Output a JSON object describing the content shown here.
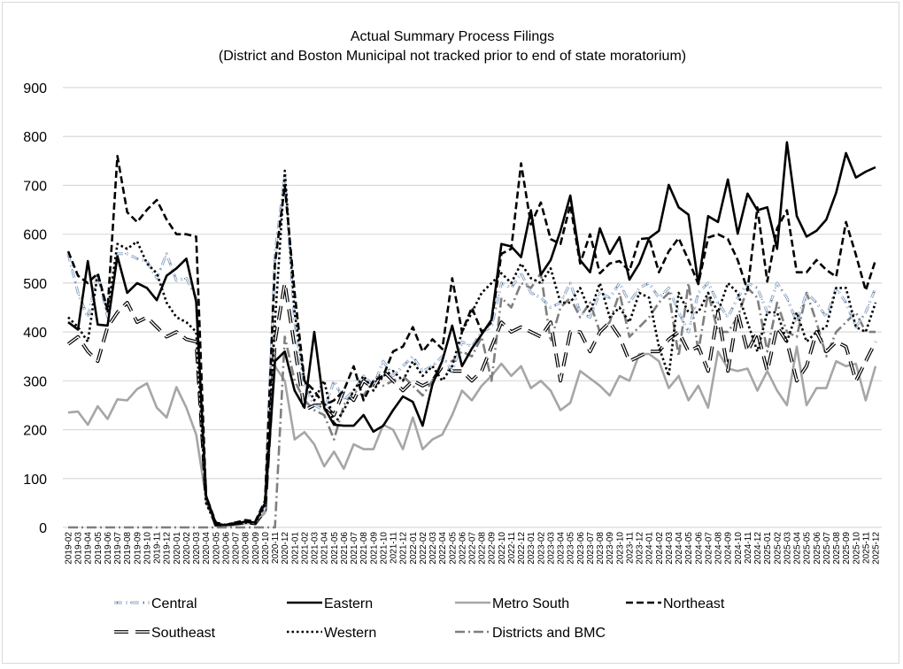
{
  "chart_data": {
    "type": "line",
    "title": "Actual Summary Process Filings",
    "subtitle": "(District and Boston Municipal not tracked prior to end of state moratorium)",
    "xlabel": "",
    "ylabel": "",
    "ylim": [
      0,
      900
    ],
    "yticks": [
      0,
      100,
      200,
      300,
      400,
      500,
      600,
      700,
      800,
      900
    ],
    "grid": true,
    "legend_position": "bottom",
    "categories": [
      "2019-02",
      "2019-03",
      "2019-04",
      "2019-05",
      "2019-06",
      "2019-07",
      "2019-08",
      "2019-09",
      "2019-10",
      "2019-11",
      "2019-12",
      "2020-01",
      "2020-02",
      "2020-03",
      "2020-04",
      "2020-05",
      "2020-06",
      "2020-07",
      "2020-08",
      "2020-09",
      "2020-10",
      "2020-11",
      "2020-12",
      "2021-01",
      "2021-02",
      "2021-03",
      "2021-04",
      "2021-05",
      "2021-06",
      "2021-07",
      "2021-08",
      "2021-09",
      "2021-10",
      "2021-11",
      "2021-12",
      "2022-01",
      "2022-02",
      "2022-03",
      "2022-04",
      "2022-05",
      "2022-06",
      "2022-07",
      "2022-08",
      "2022-09",
      "2022-10",
      "2022-11",
      "2022-12",
      "2023-01",
      "2023-02",
      "2023-03",
      "2023-04",
      "2023-05",
      "2023-06",
      "2023-07",
      "2023-08",
      "2023-09",
      "2023-10",
      "2023-11",
      "2023-12",
      "2024-01",
      "2024-02",
      "2024-03",
      "2024-04",
      "2024-05",
      "2024-06",
      "2024-07",
      "2024-08",
      "2024-09",
      "2024-10",
      "2024-11",
      "2024-12",
      "2025-01",
      "2025-02",
      "2025-03",
      "2025-04",
      "2025-05",
      "2025-06",
      "2025-07",
      "2025-08",
      "2025-09",
      "2025-10",
      "2025-11",
      "2025-12"
    ],
    "series": [
      {
        "name": "Central",
        "style": "central",
        "values": [
          560,
          480,
          430,
          520,
          430,
          560,
          560,
          550,
          545,
          510,
          560,
          505,
          510,
          470,
          60,
          5,
          5,
          10,
          12,
          10,
          40,
          560,
          720,
          420,
          290,
          250,
          240,
          300,
          260,
          280,
          310,
          290,
          340,
          310,
          330,
          350,
          320,
          330,
          350,
          320,
          380,
          370,
          400,
          410,
          500,
          490,
          520,
          480,
          470,
          450,
          460,
          500,
          440,
          430,
          480,
          470,
          500,
          460,
          490,
          500,
          470,
          490,
          440,
          400,
          480,
          500,
          460,
          430,
          470,
          500,
          490,
          440,
          500,
          470,
          420,
          480,
          460,
          430,
          490,
          460,
          410,
          440,
          490
        ]
      },
      {
        "name": "Eastern",
        "style": "eastern",
        "values": [
          420,
          405,
          545,
          415,
          413,
          555,
          480,
          500,
          490,
          465,
          515,
          530,
          550,
          462,
          65,
          5,
          5,
          8,
          12,
          10,
          50,
          340,
          360,
          280,
          245,
          400,
          245,
          210,
          208,
          208,
          230,
          196,
          208,
          240,
          268,
          257,
          208,
          293,
          341,
          413,
          330,
          366,
          395,
          425,
          580,
          575,
          553,
          649,
          517,
          547,
          607,
          679,
          547,
          522,
          612,
          560,
          594,
          507,
          540,
          592,
          607,
          701,
          655,
          640,
          498,
          637,
          625,
          712,
          601,
          683,
          649,
          655,
          570,
          788,
          637,
          595,
          607,
          630,
          685,
          766,
          716,
          728,
          737
        ]
      },
      {
        "name": "Metro South",
        "style": "metro",
        "values": [
          235,
          237,
          210,
          248,
          222,
          262,
          260,
          283,
          295,
          245,
          225,
          287,
          245,
          190,
          60,
          5,
          3,
          5,
          8,
          10,
          30,
          330,
          300,
          180,
          195,
          170,
          125,
          155,
          120,
          170,
          160,
          160,
          210,
          200,
          160,
          225,
          160,
          180,
          190,
          230,
          280,
          260,
          290,
          310,
          335,
          310,
          330,
          285,
          300,
          280,
          240,
          255,
          320,
          305,
          290,
          270,
          310,
          300,
          355,
          355,
          340,
          285,
          310,
          260,
          290,
          245,
          360,
          325,
          320,
          325,
          280,
          320,
          280,
          250,
          370,
          250,
          285,
          285,
          340,
          330,
          335,
          260,
          330
        ]
      },
      {
        "name": "Northeast",
        "style": "northeast",
        "values": [
          565,
          515,
          500,
          520,
          445,
          760,
          645,
          625,
          650,
          670,
          630,
          600,
          600,
          595,
          65,
          10,
          5,
          10,
          15,
          12,
          55,
          540,
          700,
          480,
          300,
          280,
          250,
          260,
          280,
          330,
          260,
          300,
          310,
          360,
          370,
          410,
          360,
          385,
          365,
          510,
          400,
          450,
          400,
          420,
          560,
          570,
          745,
          620,
          665,
          590,
          580,
          660,
          540,
          600,
          520,
          540,
          545,
          525,
          590,
          592,
          522,
          565,
          592,
          547,
          498,
          593,
          600,
          590,
          547,
          485,
          655,
          503,
          612,
          649,
          522,
          522,
          547,
          527,
          513,
          625,
          558,
          485,
          547
        ]
      },
      {
        "name": "Southeast",
        "style": "southeast",
        "values": [
          375,
          390,
          360,
          340,
          410,
          440,
          460,
          420,
          430,
          410,
          390,
          400,
          385,
          380,
          60,
          5,
          5,
          8,
          10,
          8,
          35,
          380,
          500,
          370,
          240,
          250,
          250,
          230,
          280,
          260,
          300,
          285,
          320,
          300,
          280,
          300,
          290,
          300,
          330,
          320,
          320,
          300,
          320,
          370,
          420,
          400,
          410,
          400,
          390,
          420,
          300,
          400,
          400,
          360,
          400,
          420,
          390,
          340,
          350,
          360,
          360,
          385,
          400,
          360,
          370,
          320,
          440,
          320,
          440,
          360,
          400,
          320,
          410,
          380,
          300,
          330,
          400,
          360,
          380,
          370,
          300,
          340,
          380
        ]
      },
      {
        "name": "Western",
        "style": "western",
        "values": [
          430,
          410,
          380,
          520,
          440,
          580,
          570,
          585,
          540,
          520,
          460,
          430,
          420,
          400,
          50,
          5,
          5,
          8,
          10,
          8,
          45,
          420,
          730,
          440,
          300,
          260,
          300,
          210,
          240,
          280,
          310,
          280,
          310,
          320,
          300,
          340,
          310,
          330,
          300,
          330,
          400,
          440,
          480,
          500,
          520,
          500,
          540,
          510,
          500,
          530,
          460,
          460,
          490,
          440,
          500,
          430,
          450,
          420,
          480,
          470,
          370,
          310,
          480,
          440,
          440,
          480,
          440,
          500,
          480,
          420,
          360,
          440,
          440,
          380,
          440,
          380,
          400,
          410,
          490,
          490,
          410,
          400,
          460
        ]
      },
      {
        "name": "Districts and BMC",
        "style": "districts",
        "values": [
          0,
          0,
          0,
          0,
          0,
          0,
          0,
          0,
          0,
          0,
          0,
          0,
          0,
          0,
          0,
          0,
          0,
          0,
          0,
          0,
          0,
          0,
          390,
          300,
          260,
          240,
          230,
          180,
          250,
          280,
          270,
          300,
          290,
          300,
          310,
          290,
          270,
          300,
          340,
          340,
          360,
          350,
          390,
          300,
          470,
          450,
          500,
          490,
          520,
          380,
          450,
          470,
          430,
          460,
          400,
          420,
          480,
          390,
          410,
          430,
          460,
          480,
          350,
          500,
          360,
          480,
          400,
          400,
          430,
          490,
          470,
          360,
          460,
          400,
          390,
          480,
          420,
          350,
          400,
          420,
          440,
          400,
          400
        ]
      }
    ],
    "colors": {
      "central": "#8fa8c8",
      "central_dot": "#1f3864",
      "eastern": "#000000",
      "metro": "#a6a6a6",
      "northeast": "#000000",
      "southeast": "#000000",
      "western": "#000000",
      "districts": "#7f7f7f",
      "grid": "#d9d9d9"
    }
  }
}
